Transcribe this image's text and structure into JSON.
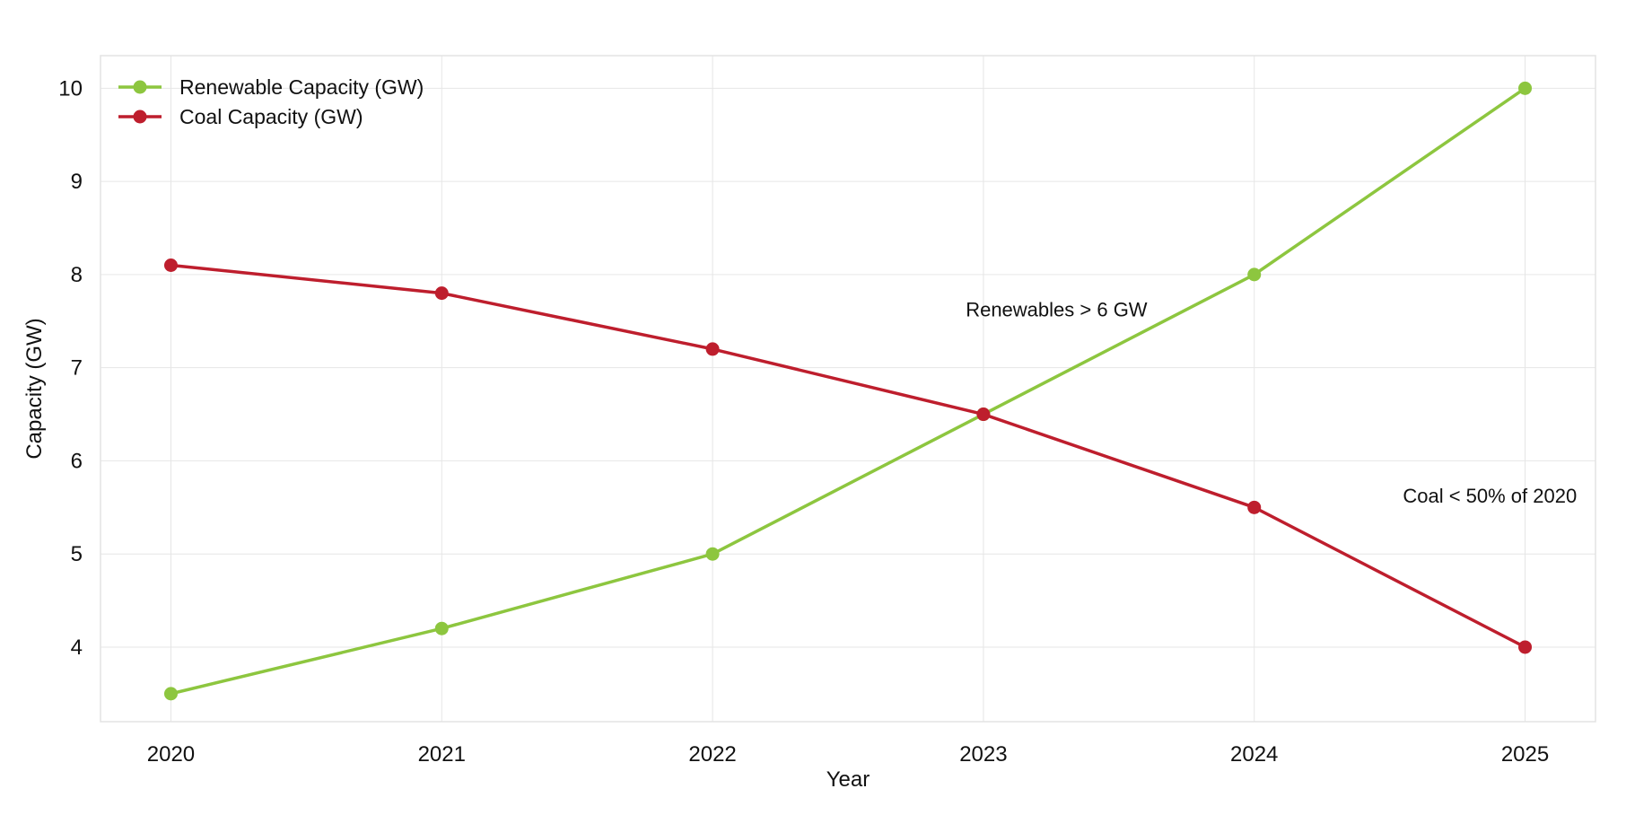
{
  "chart_data": {
    "type": "line",
    "title": "",
    "xlabel": "Year",
    "ylabel": "Capacity (GW)",
    "x": [
      2020,
      2021,
      2022,
      2023,
      2024,
      2025
    ],
    "x_tick_labels": [
      "2020",
      "2021",
      "2022",
      "2023",
      "2024",
      "2025"
    ],
    "y_ticks": [
      4,
      5,
      6,
      7,
      8,
      9,
      10
    ],
    "y_tick_labels": [
      "4",
      "5",
      "6",
      "7",
      "8",
      "9",
      "10"
    ],
    "xlim": [
      2019.74,
      2025.26
    ],
    "ylim": [
      3.2,
      10.35
    ],
    "grid": true,
    "legend_position": "top-left",
    "series": [
      {
        "name": "Renewable Capacity (GW)",
        "color": "#8dc63f",
        "values": [
          3.5,
          4.2,
          5.0,
          6.5,
          8.0,
          10.0
        ]
      },
      {
        "name": "Coal Capacity (GW)",
        "color": "#be1e2d",
        "values": [
          8.1,
          7.8,
          7.2,
          6.5,
          5.5,
          4.0
        ]
      }
    ],
    "annotations": [
      {
        "text": "Renewables > 6 GW",
        "x": 2023.27,
        "y": 7.55
      },
      {
        "text": "Coal < 50% of 2020",
        "x": 2024.87,
        "y": 5.55
      }
    ]
  }
}
